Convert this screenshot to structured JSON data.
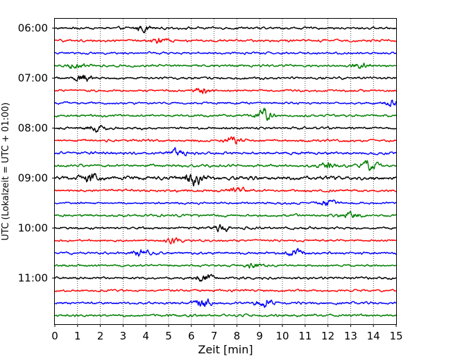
{
  "chart_data": {
    "type": "line",
    "title": "",
    "xlabel": "Zeit  [min]",
    "ylabel": "UTC (Lokalzeit = UTC + 01:00)",
    "xlim": [
      0,
      15
    ],
    "x_ticks": [
      "0",
      "1",
      "2",
      "3",
      "4",
      "5",
      "6",
      "7",
      "8",
      "9",
      "10",
      "11",
      "12",
      "13",
      "14",
      "15"
    ],
    "y_ticks": [
      "06:00",
      "07:00",
      "08:00",
      "09:00",
      "10:00",
      "11:00"
    ],
    "grid": "vertical dotted",
    "trace_interval_min": 15,
    "traces": [
      {
        "start": "06:00",
        "color": "#000000",
        "amplitude": 0.9,
        "bursts": [
          [
            3.9,
            1.2
          ]
        ]
      },
      {
        "start": "06:15",
        "color": "#ff0000",
        "amplitude": 0.9,
        "bursts": [
          [
            4.6,
            1.0
          ]
        ]
      },
      {
        "start": "06:30",
        "color": "#0000ff",
        "amplitude": 0.8,
        "bursts": []
      },
      {
        "start": "06:45",
        "color": "#007f00",
        "amplitude": 0.9,
        "bursts": [
          [
            0.9,
            1.0
          ],
          [
            13.4,
            1.0
          ]
        ]
      },
      {
        "start": "07:00",
        "color": "#000000",
        "amplitude": 0.9,
        "bursts": [
          [
            1.2,
            1.4
          ]
        ]
      },
      {
        "start": "07:15",
        "color": "#ff0000",
        "amplitude": 0.8,
        "bursts": [
          [
            6.5,
            1.2
          ]
        ]
      },
      {
        "start": "07:30",
        "color": "#0000ff",
        "amplitude": 0.8,
        "bursts": [
          [
            14.8,
            1.2
          ]
        ]
      },
      {
        "start": "07:45",
        "color": "#007f00",
        "amplitude": 0.9,
        "bursts": [
          [
            9.2,
            1.6
          ]
        ]
      },
      {
        "start": "08:00",
        "color": "#000000",
        "amplitude": 0.9,
        "bursts": [
          [
            1.8,
            1.0
          ]
        ]
      },
      {
        "start": "08:15",
        "color": "#ff0000",
        "amplitude": 0.9,
        "bursts": [
          [
            7.8,
            1.0
          ]
        ]
      },
      {
        "start": "08:30",
        "color": "#0000ff",
        "amplitude": 1.0,
        "bursts": [
          [
            5.4,
            1.4
          ]
        ]
      },
      {
        "start": "08:45",
        "color": "#007f00",
        "amplitude": 1.0,
        "bursts": [
          [
            12.0,
            1.0
          ],
          [
            13.8,
            1.6
          ]
        ]
      },
      {
        "start": "09:00",
        "color": "#000000",
        "amplitude": 1.4,
        "bursts": [
          [
            1.6,
            1.5
          ],
          [
            6.1,
            2.2
          ]
        ]
      },
      {
        "start": "09:15",
        "color": "#ff0000",
        "amplitude": 0.9,
        "bursts": [
          [
            8.0,
            1.0
          ]
        ]
      },
      {
        "start": "09:30",
        "color": "#0000ff",
        "amplitude": 0.8,
        "bursts": [
          [
            12.0,
            1.0
          ]
        ]
      },
      {
        "start": "09:45",
        "color": "#007f00",
        "amplitude": 0.9,
        "bursts": [
          [
            13.0,
            1.2
          ]
        ]
      },
      {
        "start": "10:00",
        "color": "#000000",
        "amplitude": 0.9,
        "bursts": [
          [
            7.3,
            1.2
          ]
        ]
      },
      {
        "start": "10:15",
        "color": "#ff0000",
        "amplitude": 0.8,
        "bursts": [
          [
            5.2,
            1.0
          ]
        ]
      },
      {
        "start": "10:30",
        "color": "#0000ff",
        "amplitude": 0.9,
        "bursts": [
          [
            3.8,
            1.4
          ],
          [
            10.6,
            1.4
          ]
        ]
      },
      {
        "start": "10:45",
        "color": "#007f00",
        "amplitude": 0.8,
        "bursts": [
          [
            8.8,
            1.0
          ]
        ]
      },
      {
        "start": "11:00",
        "color": "#000000",
        "amplitude": 0.9,
        "bursts": [
          [
            6.6,
            1.4
          ]
        ]
      },
      {
        "start": "11:15",
        "color": "#ff0000",
        "amplitude": 0.8,
        "bursts": []
      },
      {
        "start": "11:30",
        "color": "#0000ff",
        "amplitude": 0.9,
        "bursts": [
          [
            6.5,
            1.6
          ],
          [
            9.2,
            1.4
          ]
        ]
      },
      {
        "start": "11:45",
        "color": "#007f00",
        "amplitude": 0.9,
        "bursts": []
      }
    ]
  }
}
